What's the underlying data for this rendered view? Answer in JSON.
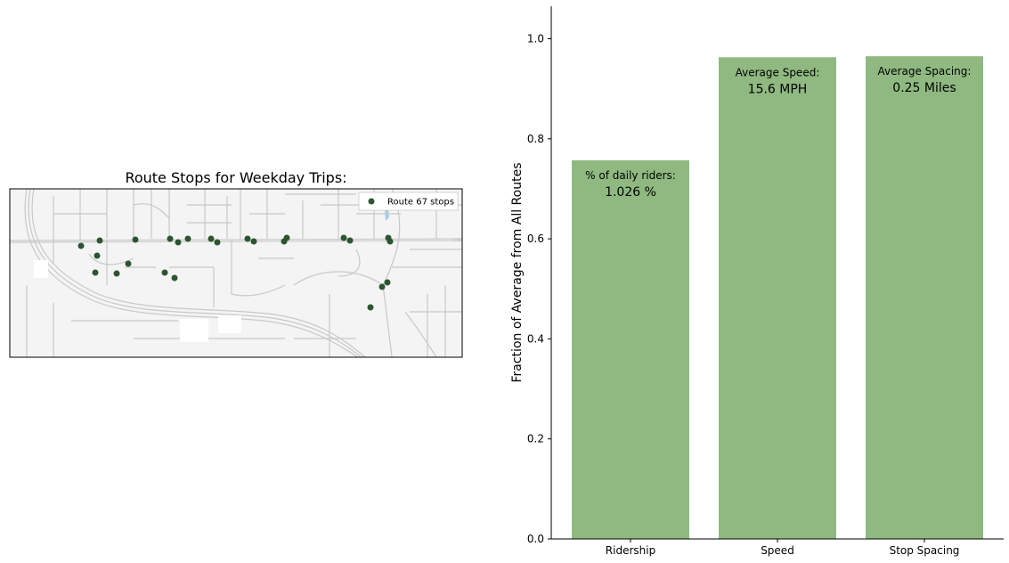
{
  "map": {
    "title": "Route Stops for Weekday Trips:",
    "legend_label": "Route 67 stops",
    "stop_color": "#2c5530"
  },
  "chart_data": {
    "type": "bar",
    "categories": [
      "Ridership",
      "Speed",
      "Stop Spacing"
    ],
    "values": [
      0.757,
      0.963,
      0.965
    ],
    "ylabel": "Fraction of Average from All Routes",
    "ylim": [
      0,
      1.065
    ],
    "yticks": [
      "0.0",
      "0.2",
      "0.4",
      "0.6",
      "0.8",
      "1.0"
    ],
    "bar_color": "#8fb980",
    "annotations": [
      {
        "label": "% of daily riders:",
        "value": "1.026 %"
      },
      {
        "label": "Average Speed:",
        "value": "15.6 MPH"
      },
      {
        "label": "Average Spacing:",
        "value": "0.25 Miles"
      }
    ]
  }
}
